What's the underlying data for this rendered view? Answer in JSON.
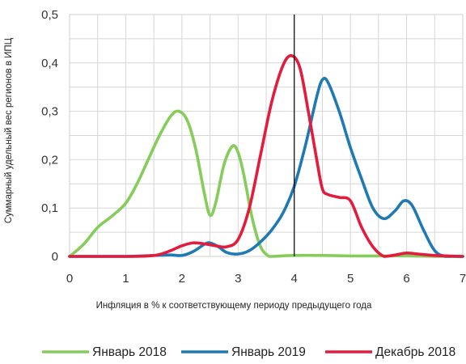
{
  "chart_data": {
    "type": "line",
    "title": "",
    "xlabel": "Инфляция в % к соответствующему периоду предыдущего года",
    "ylabel": "Суммарный удельный вес регионов в ИПЦ",
    "xlim": [
      0,
      7
    ],
    "ylim": [
      0,
      0.5
    ],
    "x_ticks": [
      "0",
      "1",
      "2",
      "3",
      "4",
      "5",
      "6",
      "7"
    ],
    "y_ticks": [
      "0",
      "0,1",
      "0,2",
      "0,3",
      "0,4",
      "0,5"
    ],
    "grid": true,
    "reference_line_x": 4,
    "legend": "bottom",
    "series": [
      {
        "name": "Январь 2018",
        "color": "#86cc5b",
        "x": [
          0,
          0.25,
          0.5,
          0.75,
          1.0,
          1.2,
          1.4,
          1.6,
          1.8,
          1.95,
          2.1,
          2.25,
          2.4,
          2.5,
          2.6,
          2.75,
          2.9,
          3.0,
          3.1,
          3.25,
          3.4,
          3.55,
          3.6,
          4,
          4.5,
          5,
          5.5,
          6,
          6.5,
          7
        ],
        "y": [
          0,
          0.025,
          0.06,
          0.083,
          0.11,
          0.15,
          0.2,
          0.25,
          0.29,
          0.3,
          0.28,
          0.22,
          0.13,
          0.085,
          0.11,
          0.19,
          0.228,
          0.215,
          0.17,
          0.08,
          0.02,
          0.0,
          0.0,
          0.002,
          0.002,
          0.001,
          0.001,
          0.001,
          0.0,
          0.0
        ]
      },
      {
        "name": "Январь 2019",
        "color": "#1f7ab3",
        "x": [
          0,
          1.0,
          1.5,
          1.8,
          2.0,
          2.2,
          2.4,
          2.5,
          2.65,
          2.8,
          3.0,
          3.2,
          3.4,
          3.6,
          3.8,
          4.0,
          4.2,
          4.4,
          4.5,
          4.6,
          4.8,
          5.0,
          5.2,
          5.4,
          5.6,
          5.8,
          5.95,
          6.1,
          6.3,
          6.5,
          6.7,
          7.0
        ],
        "y": [
          0,
          0.0,
          0.002,
          0.003,
          0.002,
          0.01,
          0.025,
          0.028,
          0.02,
          0.008,
          0.005,
          0.012,
          0.03,
          0.055,
          0.09,
          0.145,
          0.23,
          0.33,
          0.365,
          0.36,
          0.3,
          0.225,
          0.16,
          0.1,
          0.078,
          0.095,
          0.115,
          0.105,
          0.055,
          0.012,
          0.0,
          0.0
        ]
      },
      {
        "name": "Декабрь 2018",
        "color": "#e31b3d",
        "x": [
          0,
          1.0,
          1.4,
          1.6,
          1.8,
          2.0,
          2.2,
          2.4,
          2.6,
          2.8,
          3.0,
          3.2,
          3.4,
          3.6,
          3.8,
          3.95,
          4.1,
          4.25,
          4.4,
          4.5,
          4.6,
          4.8,
          5.0,
          5.2,
          5.4,
          5.6,
          5.8,
          6.0,
          6.2,
          6.5,
          7.0
        ],
        "y": [
          0,
          0.0,
          0.001,
          0.004,
          0.012,
          0.022,
          0.028,
          0.026,
          0.022,
          0.02,
          0.035,
          0.1,
          0.21,
          0.32,
          0.395,
          0.415,
          0.39,
          0.3,
          0.2,
          0.14,
          0.128,
          0.122,
          0.115,
          0.06,
          0.02,
          0.0,
          0.003,
          0.007,
          0.005,
          0.002,
          0.0
        ]
      }
    ]
  }
}
